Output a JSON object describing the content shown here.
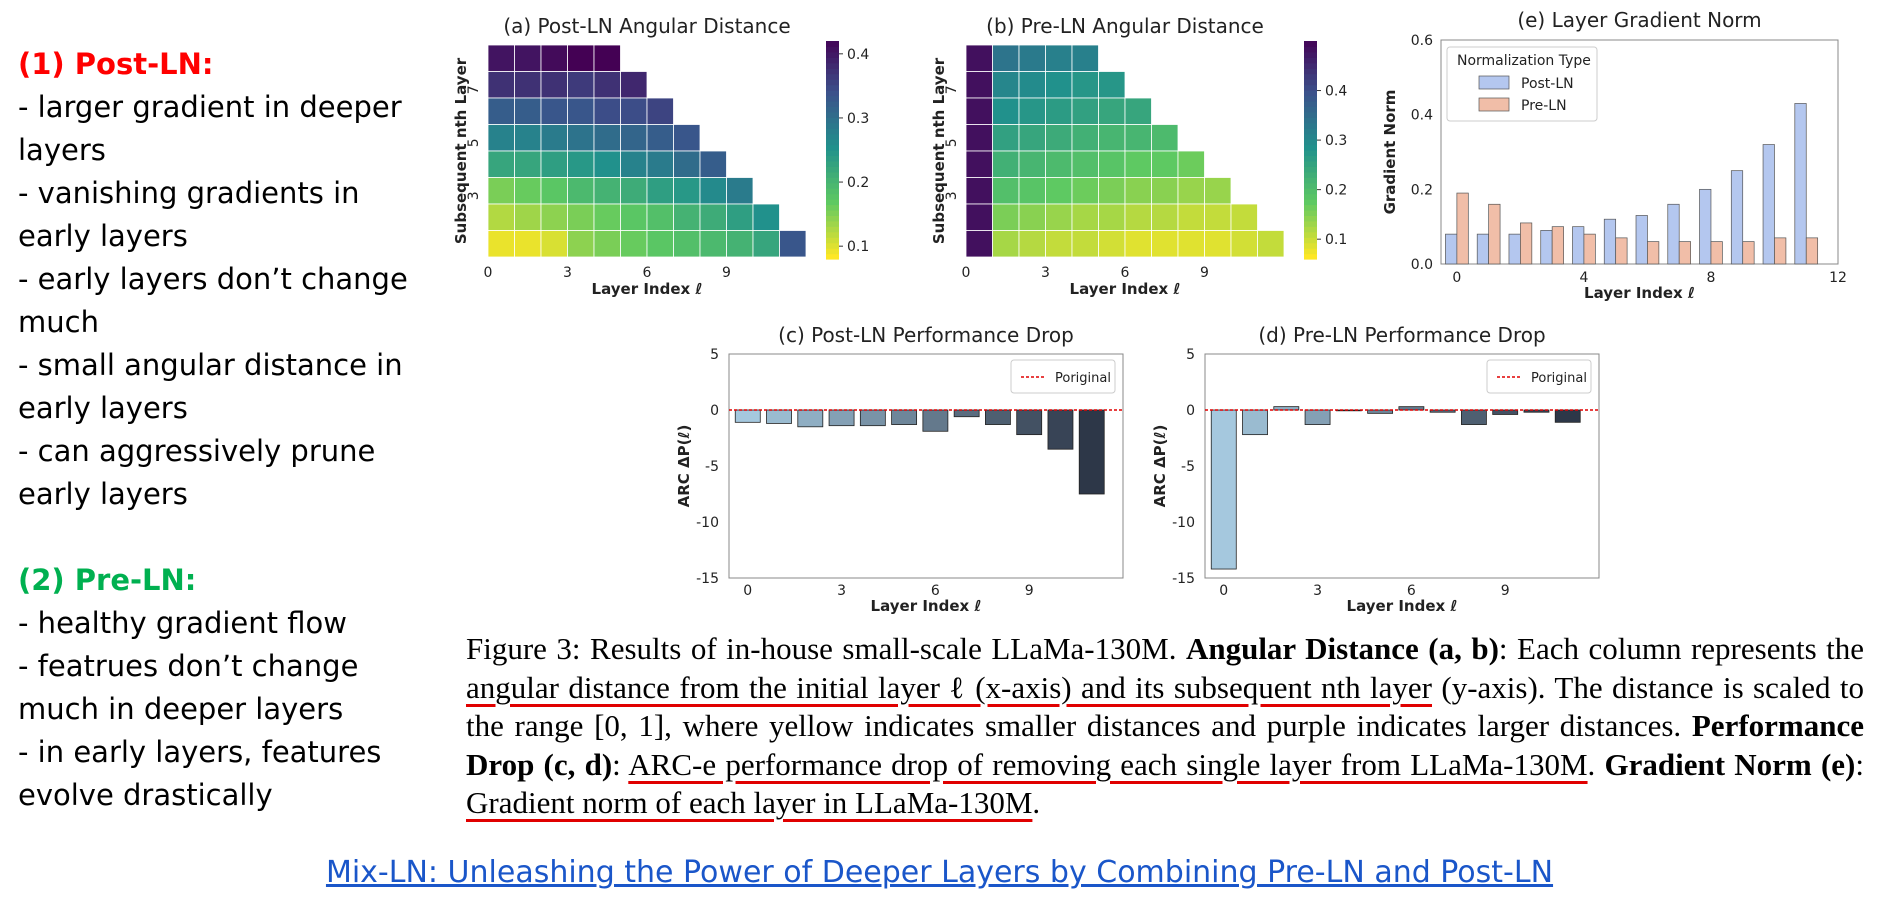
{
  "notes": {
    "post_ln_title": "(1) Post-LN:",
    "post_ln_color": "#ff0000",
    "post_ln_items": [
      "- larger gradient in deeper layers",
      "- vanishing gradients in early layers",
      "- early layers don’t change much",
      "- small angular distance in early layers",
      "- can aggressively prune early layers"
    ],
    "pre_ln_title": "(2) Pre-LN:",
    "pre_ln_color": "#00b050",
    "pre_ln_items": [
      "- healthy gradient flow",
      "- featrues don’t change much in deeper layers",
      "- in early layers, features evolve drastically"
    ]
  },
  "caption": {
    "p1": "Figure 3: Results of in-house small-scale LLaMa-130M. ",
    "b1": "Angular Distance (a, b)",
    "p2": ": Each column represents the ",
    "u1": "angular distance from the initial layer ℓ (x-axis) and its subsequent nth layer",
    "p3": " (y-axis). The distance is scaled to the range [0, 1], where yellow indicates smaller distances and purple indicates larger distances. ",
    "b2": "Performance Drop (c, d)",
    "p4": ": ",
    "u2": "ARC-e performance drop of removing each single layer from LLaMa-130M",
    "p5": ". ",
    "b3": "Gradient Norm (e)",
    "p6": ": ",
    "u3": "Gradient norm of each layer in LLaMa-130M",
    "p7": "."
  },
  "paper_link": "Mix-LN: Unleashing the Power of Deeper Layers by Combining Pre-LN and Post-LN",
  "chart_data": [
    {
      "id": "a",
      "type": "heatmap",
      "title": "(a) Post-LN Angular Distance",
      "xlabel": "Layer Index ℓ",
      "ylabel": "Subsequent nth Layer",
      "xticks": [
        "0",
        "3",
        "6",
        "9"
      ],
      "yticks": [
        "3",
        "5",
        "7"
      ],
      "colorbar_ticks": [
        "0.1",
        "0.2",
        "0.3",
        "0.4"
      ],
      "colorbar_range": [
        0.08,
        0.42
      ],
      "colormap": "viridis_r",
      "rows": [
        [
          0.4,
          0.4,
          0.41,
          0.42,
          0.42
        ],
        [
          0.37,
          0.37,
          0.37,
          0.36,
          0.37,
          0.38
        ],
        [
          0.32,
          0.32,
          0.33,
          0.33,
          0.34,
          0.34,
          0.35
        ],
        [
          0.27,
          0.27,
          0.28,
          0.29,
          0.3,
          0.31,
          0.32,
          0.33
        ],
        [
          0.22,
          0.22,
          0.23,
          0.24,
          0.25,
          0.27,
          0.28,
          0.3,
          0.32
        ],
        [
          0.15,
          0.16,
          0.17,
          0.19,
          0.2,
          0.21,
          0.23,
          0.24,
          0.26,
          0.28
        ],
        [
          0.12,
          0.13,
          0.14,
          0.15,
          0.16,
          0.17,
          0.18,
          0.2,
          0.21,
          0.23,
          0.25
        ],
        [
          0.09,
          0.09,
          0.1,
          0.14,
          0.15,
          0.16,
          0.17,
          0.18,
          0.19,
          0.2,
          0.22,
          0.33
        ]
      ]
    },
    {
      "id": "b",
      "type": "heatmap",
      "title": "(b) Pre-LN Angular Distance",
      "xlabel": "Layer Index ℓ",
      "ylabel": "Subsequent nth Layer",
      "xticks": [
        "0",
        "3",
        "6",
        "9"
      ],
      "yticks": [
        "3",
        "5",
        "7"
      ],
      "colorbar_ticks": [
        "0.1",
        "0.2",
        "0.3",
        "0.4"
      ],
      "colorbar_range": [
        0.06,
        0.5
      ],
      "colormap": "viridis_r",
      "rows": [
        [
          0.48,
          0.33,
          0.32,
          0.31,
          0.31
        ],
        [
          0.48,
          0.3,
          0.29,
          0.28,
          0.27,
          0.27
        ],
        [
          0.48,
          0.28,
          0.27,
          0.26,
          0.25,
          0.24,
          0.24
        ],
        [
          0.48,
          0.25,
          0.24,
          0.23,
          0.22,
          0.21,
          0.21,
          0.2
        ],
        [
          0.48,
          0.22,
          0.21,
          0.2,
          0.19,
          0.18,
          0.17,
          0.17,
          0.16
        ],
        [
          0.48,
          0.19,
          0.18,
          0.17,
          0.16,
          0.15,
          0.14,
          0.14,
          0.13,
          0.13
        ],
        [
          0.48,
          0.15,
          0.14,
          0.13,
          0.12,
          0.12,
          0.11,
          0.11,
          0.1,
          0.1,
          0.1
        ],
        [
          0.48,
          0.12,
          0.11,
          0.1,
          0.1,
          0.09,
          0.08,
          0.08,
          0.08,
          0.08,
          0.09,
          0.1
        ]
      ]
    },
    {
      "id": "e",
      "type": "bar",
      "title": "(e) Layer Gradient Norm",
      "xlabel": "Layer Index ℓ",
      "ylabel": "Gradient Norm",
      "legend_title": "Normalization Type",
      "legend_position": "upper-left",
      "x": [
        0,
        1,
        2,
        3,
        4,
        5,
        6,
        7,
        8,
        9,
        10,
        11
      ],
      "xticks": [
        "0",
        "4",
        "8",
        "12"
      ],
      "yticks": [
        "0.0",
        "0.2",
        "0.4",
        "0.6"
      ],
      "ylim": [
        0,
        0.6
      ],
      "xlim": [
        -0.5,
        12
      ],
      "series": [
        {
          "name": "Post-LN",
          "color": "#b4c7ef",
          "values": [
            0.08,
            0.08,
            0.08,
            0.09,
            0.1,
            0.12,
            0.13,
            0.16,
            0.2,
            0.25,
            0.32,
            0.43
          ]
        },
        {
          "name": "Pre-LN",
          "color": "#f1bea8",
          "values": [
            0.19,
            0.16,
            0.11,
            0.1,
            0.08,
            0.07,
            0.06,
            0.06,
            0.06,
            0.06,
            0.07,
            0.07
          ]
        }
      ]
    },
    {
      "id": "c",
      "type": "bar",
      "title": "(c) Post-LN Performance Drop",
      "xlabel": "Layer Index ℓ",
      "ylabel": "ARC ΔP(ℓ)",
      "legend": "Poriginal",
      "legend_position": "upper-right",
      "reference_line": 0,
      "x": [
        0,
        1,
        2,
        3,
        4,
        5,
        6,
        7,
        8,
        9,
        10,
        11
      ],
      "xticks": [
        "0",
        "3",
        "6",
        "9"
      ],
      "yticks": [
        "5",
        "0",
        "-5",
        "-10",
        "-15"
      ],
      "ylim": [
        -15,
        5
      ],
      "values": [
        -1.1,
        -1.2,
        -1.5,
        -1.4,
        -1.4,
        -1.3,
        -1.9,
        -0.6,
        -1.3,
        -2.2,
        -3.5,
        -7.5
      ]
    },
    {
      "id": "d",
      "type": "bar",
      "title": "(d) Pre-LN Performance Drop",
      "xlabel": "Layer Index ℓ",
      "ylabel": "ARC ΔP(ℓ)",
      "legend": "Poriginal",
      "legend_position": "upper-right",
      "reference_line": 0,
      "x": [
        0,
        1,
        2,
        3,
        4,
        5,
        6,
        7,
        8,
        9,
        10,
        11
      ],
      "xticks": [
        "0",
        "3",
        "6",
        "9"
      ],
      "yticks": [
        "5",
        "0",
        "-5",
        "-10",
        "-15"
      ],
      "ylim": [
        -15,
        5
      ],
      "values": [
        -14.2,
        -2.2,
        0.3,
        -1.3,
        0.0,
        -0.3,
        0.3,
        -0.2,
        -1.3,
        -0.4,
        -0.2,
        -1.1
      ]
    }
  ]
}
